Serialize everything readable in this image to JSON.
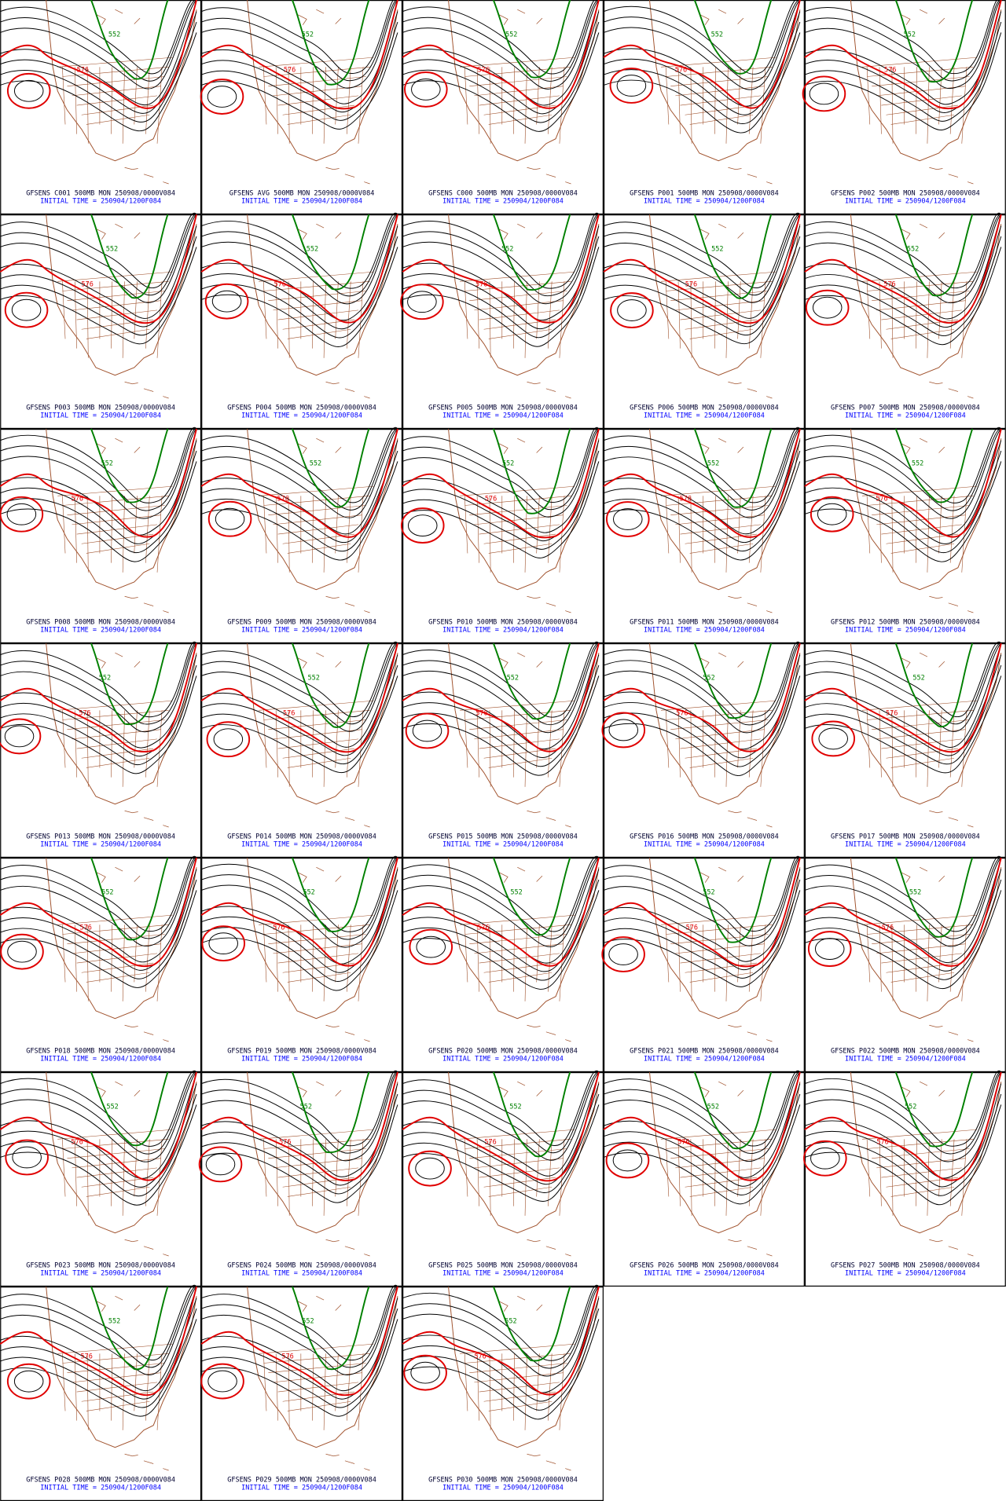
{
  "panels": [
    {
      "caption": "GFSENS C001 500MB MON 250908/0000V084",
      "initial_time": "INITIAL TIME = 250904/1200F084",
      "contour_labels": [
        "552",
        "576"
      ]
    },
    {
      "caption": "GFSENS AVG 500MB MON 250908/0000V084",
      "initial_time": "INITIAL TIME = 250904/1200F084",
      "contour_labels": [
        "552",
        "576"
      ]
    },
    {
      "caption": "GFSENS C000 500MB MON 250908/0000V084",
      "initial_time": "INITIAL TIME = 250904/1200F084",
      "contour_labels": [
        "552",
        "576"
      ]
    },
    {
      "caption": "GFSENS P001 500MB MON 250908/0000V084",
      "initial_time": "INITIAL TIME = 250904/1200F084",
      "contour_labels": [
        "552",
        "576"
      ]
    },
    {
      "caption": "GFSENS P002 500MB MON 250908/0000V084",
      "initial_time": "INITIAL TIME = 250904/1200F084",
      "contour_labels": [
        "552",
        "576"
      ]
    },
    {
      "caption": "GFSENS P003 500MB MON 250908/0000V084",
      "initial_time": "INITIAL TIME = 250904/1200F084",
      "contour_labels": [
        "552",
        "576"
      ]
    },
    {
      "caption": "GFSENS P004 500MB MON 250908/0000V084",
      "initial_time": "INITIAL TIME = 250904/1200F084",
      "contour_labels": [
        "552",
        "576"
      ]
    },
    {
      "caption": "GFSENS P005 500MB MON 250908/0000V084",
      "initial_time": "INITIAL TIME = 250904/1200F084",
      "contour_labels": [
        "552",
        "576"
      ]
    },
    {
      "caption": "GFSENS P006 500MB MON 250908/0000V084",
      "initial_time": "INITIAL TIME = 250904/1200F084",
      "contour_labels": [
        "552",
        "576"
      ]
    },
    {
      "caption": "GFSENS P007 500MB MON 250908/0000V084",
      "initial_time": "INITIAL TIME = 250904/1200F084",
      "contour_labels": [
        "552",
        "576"
      ]
    },
    {
      "caption": "GFSENS P008 500MB MON 250908/0000V084",
      "initial_time": "INITIAL TIME = 250904/1200F084",
      "contour_labels": [
        "552",
        "576"
      ]
    },
    {
      "caption": "GFSENS P009 500MB MON 250908/0000V084",
      "initial_time": "INITIAL TIME = 250904/1200F084",
      "contour_labels": [
        "552",
        "576"
      ]
    },
    {
      "caption": "GFSENS P010 500MB MON 250908/0000V084",
      "initial_time": "INITIAL TIME = 250904/1200F084",
      "contour_labels": [
        "552",
        "576"
      ]
    },
    {
      "caption": "GFSENS P011 500MB MON 250908/0000V084",
      "initial_time": "INITIAL TIME = 250904/1200F084",
      "contour_labels": [
        "552",
        "576"
      ]
    },
    {
      "caption": "GFSENS P012 500MB MON 250908/0000V084",
      "initial_time": "INITIAL TIME = 250904/1200F084",
      "contour_labels": [
        "552",
        "576"
      ]
    },
    {
      "caption": "GFSENS P013 500MB MON 250908/0000V084",
      "initial_time": "INITIAL TIME = 250904/1200F084",
      "contour_labels": [
        "552",
        "576"
      ]
    },
    {
      "caption": "GFSENS P014 500MB MON 250908/0000V084",
      "initial_time": "INITIAL TIME = 250904/1200F084",
      "contour_labels": [
        "552",
        "576"
      ]
    },
    {
      "caption": "GFSENS P015 500MB MON 250908/0000V084",
      "initial_time": "INITIAL TIME = 250904/1200F084",
      "contour_labels": [
        "552",
        "576"
      ]
    },
    {
      "caption": "GFSENS P016 500MB MON 250908/0000V084",
      "initial_time": "INITIAL TIME = 250904/1200F084",
      "contour_labels": [
        "552",
        "576"
      ]
    },
    {
      "caption": "GFSENS P017 500MB MON 250908/0000V084",
      "initial_time": "INITIAL TIME = 250904/1200F084",
      "contour_labels": [
        "552",
        "576"
      ]
    },
    {
      "caption": "GFSENS P018 500MB MON 250908/0000V084",
      "initial_time": "INITIAL TIME = 250904/1200F084",
      "contour_labels": [
        "552",
        "576"
      ]
    },
    {
      "caption": "GFSENS P019 500MB MON 250908/0000V084",
      "initial_time": "INITIAL TIME = 250904/1200F084",
      "contour_labels": [
        "552",
        "576"
      ]
    },
    {
      "caption": "GFSENS P020 500MB MON 250908/0000V084",
      "initial_time": "INITIAL TIME = 250904/1200F084",
      "contour_labels": [
        "552",
        "576"
      ]
    },
    {
      "caption": "GFSENS P021 500MB MON 250908/0000V084",
      "initial_time": "INITIAL TIME = 250904/1200F084",
      "contour_labels": [
        "552",
        "576"
      ]
    },
    {
      "caption": "GFSENS P022 500MB MON 250908/0000V084",
      "initial_time": "INITIAL TIME = 250904/1200F084",
      "contour_labels": [
        "552",
        "576"
      ]
    },
    {
      "caption": "GFSENS P023 500MB MON 250908/0000V084",
      "initial_time": "INITIAL TIME = 250904/1200F084",
      "contour_labels": [
        "552",
        "576"
      ]
    },
    {
      "caption": "GFSENS P024 500MB MON 250908/0000V084",
      "initial_time": "INITIAL TIME = 250904/1200F084",
      "contour_labels": [
        "552",
        "576"
      ]
    },
    {
      "caption": "GFSENS P025 500MB MON 250908/0000V084",
      "initial_time": "INITIAL TIME = 250904/1200F084",
      "contour_labels": [
        "552",
        "576"
      ]
    },
    {
      "caption": "GFSENS P026 500MB MON 250908/0000V084",
      "initial_time": "INITIAL TIME = 250904/1200F084",
      "contour_labels": [
        "552",
        "576"
      ]
    },
    {
      "caption": "GFSENS P027 500MB MON 250908/0000V084",
      "initial_time": "INITIAL TIME = 250904/1200F084",
      "contour_labels": [
        "552",
        "576"
      ]
    },
    {
      "caption": "GFSENS P028 500MB MON 250908/0000V084",
      "initial_time": "INITIAL TIME = 250904/1200F084",
      "contour_labels": [
        "552",
        "576"
      ]
    },
    {
      "caption": "GFSENS P029 500MB MON 250908/0000V084",
      "initial_time": "INITIAL TIME = 250904/1200F084",
      "contour_labels": [
        "552",
        "576"
      ]
    },
    {
      "caption": "GFSENS P030 500MB MON 250908/0000V084",
      "initial_time": "INITIAL TIME = 250904/1200F084",
      "contour_labels": [
        "552",
        "576"
      ]
    }
  ]
}
